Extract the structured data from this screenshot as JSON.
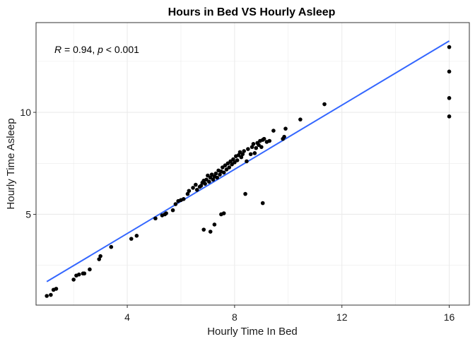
{
  "chart_data": {
    "type": "scatter",
    "title": "Hours in Bed VS Hourly Asleep",
    "xlabel": "Hourly Time In Bed",
    "ylabel": "Hourly Time Asleep",
    "xlim": [
      0.6,
      16.75
    ],
    "ylim": [
      0.55,
      14.4
    ],
    "xticks": [
      4,
      8,
      12,
      16
    ],
    "yticks": [
      5,
      10
    ],
    "grid": true,
    "annotation": {
      "r_label": "R",
      "r_value": " = 0.94, ",
      "p_label": "p",
      "p_value": " < 0.001"
    },
    "fit_line": {
      "x": [
        1.0,
        16.0
      ],
      "y": [
        1.7,
        13.5
      ],
      "color": "#3366ff"
    },
    "point_color": "#000000",
    "points": [
      [
        1.0,
        1.0
      ],
      [
        1.15,
        1.05
      ],
      [
        1.25,
        1.3
      ],
      [
        1.35,
        1.35
      ],
      [
        2.0,
        1.8
      ],
      [
        2.1,
        2.0
      ],
      [
        2.2,
        2.05
      ],
      [
        2.35,
        2.1
      ],
      [
        2.4,
        2.1
      ],
      [
        2.6,
        2.3
      ],
      [
        2.95,
        2.8
      ],
      [
        3.0,
        2.95
      ],
      [
        3.4,
        3.4
      ],
      [
        4.15,
        3.8
      ],
      [
        4.35,
        3.95
      ],
      [
        5.05,
        4.8
      ],
      [
        5.3,
        4.95
      ],
      [
        5.4,
        5.0
      ],
      [
        5.45,
        5.05
      ],
      [
        5.7,
        5.2
      ],
      [
        5.8,
        5.5
      ],
      [
        5.9,
        5.65
      ],
      [
        6.0,
        5.7
      ],
      [
        6.1,
        5.75
      ],
      [
        6.25,
        6.0
      ],
      [
        6.3,
        6.15
      ],
      [
        6.45,
        6.3
      ],
      [
        6.55,
        6.45
      ],
      [
        6.6,
        6.2
      ],
      [
        6.7,
        6.35
      ],
      [
        6.75,
        6.4
      ],
      [
        6.8,
        6.55
      ],
      [
        6.85,
        6.65
      ],
      [
        6.9,
        6.5
      ],
      [
        6.95,
        6.7
      ],
      [
        7.0,
        6.9
      ],
      [
        7.05,
        6.6
      ],
      [
        7.1,
        6.8
      ],
      [
        7.15,
        6.95
      ],
      [
        7.2,
        6.7
      ],
      [
        7.25,
        6.85
      ],
      [
        7.3,
        7.0
      ],
      [
        7.35,
        6.8
      ],
      [
        7.4,
        7.15
      ],
      [
        7.45,
        6.95
      ],
      [
        7.5,
        7.1
      ],
      [
        7.55,
        7.3
      ],
      [
        7.6,
        7.05
      ],
      [
        7.65,
        7.4
      ],
      [
        7.7,
        7.2
      ],
      [
        7.75,
        7.5
      ],
      [
        7.8,
        7.3
      ],
      [
        7.85,
        7.6
      ],
      [
        7.9,
        7.45
      ],
      [
        7.95,
        7.7
      ],
      [
        8.0,
        7.55
      ],
      [
        8.05,
        7.85
      ],
      [
        8.1,
        7.65
      ],
      [
        8.15,
        7.9
      ],
      [
        8.2,
        8.05
      ],
      [
        8.25,
        7.8
      ],
      [
        8.3,
        7.95
      ],
      [
        8.35,
        8.1
      ],
      [
        8.45,
        7.6
      ],
      [
        8.5,
        8.2
      ],
      [
        8.6,
        7.95
      ],
      [
        8.65,
        8.3
      ],
      [
        8.7,
        8.45
      ],
      [
        8.75,
        8.0
      ],
      [
        8.8,
        8.25
      ],
      [
        8.85,
        8.5
      ],
      [
        8.9,
        8.4
      ],
      [
        8.95,
        8.6
      ],
      [
        9.0,
        8.3
      ],
      [
        9.05,
        8.65
      ],
      [
        9.1,
        8.7
      ],
      [
        9.2,
        8.55
      ],
      [
        9.3,
        8.6
      ],
      [
        9.45,
        9.1
      ],
      [
        9.8,
        8.7
      ],
      [
        9.85,
        8.8
      ],
      [
        9.9,
        9.2
      ],
      [
        10.45,
        9.65
      ],
      [
        11.35,
        10.4
      ],
      [
        6.85,
        4.25
      ],
      [
        7.1,
        4.15
      ],
      [
        7.25,
        4.5
      ],
      [
        7.5,
        5.0
      ],
      [
        7.6,
        5.05
      ],
      [
        8.4,
        6.0
      ],
      [
        9.05,
        5.55
      ],
      [
        16.0,
        13.2
      ],
      [
        16.0,
        12.0
      ],
      [
        16.0,
        10.7
      ],
      [
        16.0,
        9.8
      ]
    ]
  }
}
